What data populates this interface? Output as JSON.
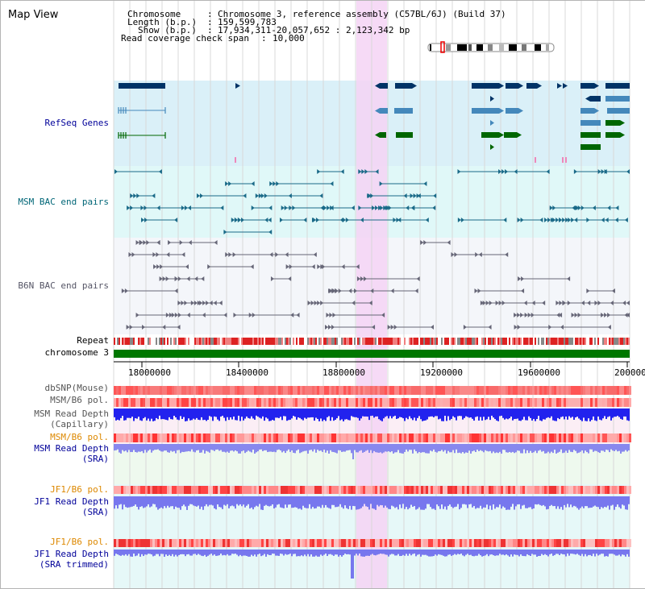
{
  "app": {
    "title": "Map View"
  },
  "info": {
    "chromosome_key": "Chromosome",
    "chromosome_val": "Chromosome 3, reference assembly (C57BL/6J) (Build 37)",
    "length_key": "Length (b.p.)",
    "length_val": "159,599,783",
    "show_key": "Show (b.p.)",
    "show_val": "17,934,311-20,057,652 : 2,123,342 bp",
    "coverage_key": "Read coverage check span",
    "coverage_val": "10,000"
  },
  "tracks": {
    "refseq": "RefSeq Genes",
    "msm_bac": "MSM BAC end pairs",
    "b6n_bac": "B6N BAC end pairs",
    "repeat": "Repeat",
    "chromosome": "chromosome 3",
    "dbsnp": "dbSNP(Mouse)",
    "msm_b6_pol_1": "MSM/B6 pol.",
    "msm_read_depth_cap_1": "MSM Read Depth",
    "msm_read_depth_cap_2": "(Capillary)",
    "msm_b6_pol_2": "MSM/B6 pol.",
    "msm_read_depth_sra_1": "MSM Read Depth",
    "msm_read_depth_sra_2": "(SRA)",
    "jf1_b6_pol_1": "JF1/B6 pol.",
    "jf1_read_depth_sra_1": "JF1 Read Depth",
    "jf1_read_depth_sra_2": "(SRA)",
    "jf1_b6_pol_2": "JF1/B6 pol.",
    "jf1_read_depth_trim_1": "JF1 Read Depth",
    "jf1_read_depth_trim_2": "(SRA trimmed)"
  },
  "axis": {
    "ticks": [
      "18000000",
      "18400000",
      "18800000",
      "19200000",
      "19600000",
      "20000000"
    ]
  },
  "colors": {
    "refseq_bg": "#daf0f8",
    "msm_bac_bg": "#e0f8f8",
    "b6n_bac_bg": "#f4f6fa",
    "highlight": "#f4d4f4",
    "gene_dark": "#003366",
    "gene_mid": "#4488bb",
    "gene_green": "#006600",
    "chrom_green": "#007700",
    "label_blue": "#000099",
    "label_teal": "#006677",
    "label_gray": "#555566",
    "label_orange": "#dd8800",
    "depth_blue": "#2222ee",
    "depth_light": "#7777ee"
  }
}
